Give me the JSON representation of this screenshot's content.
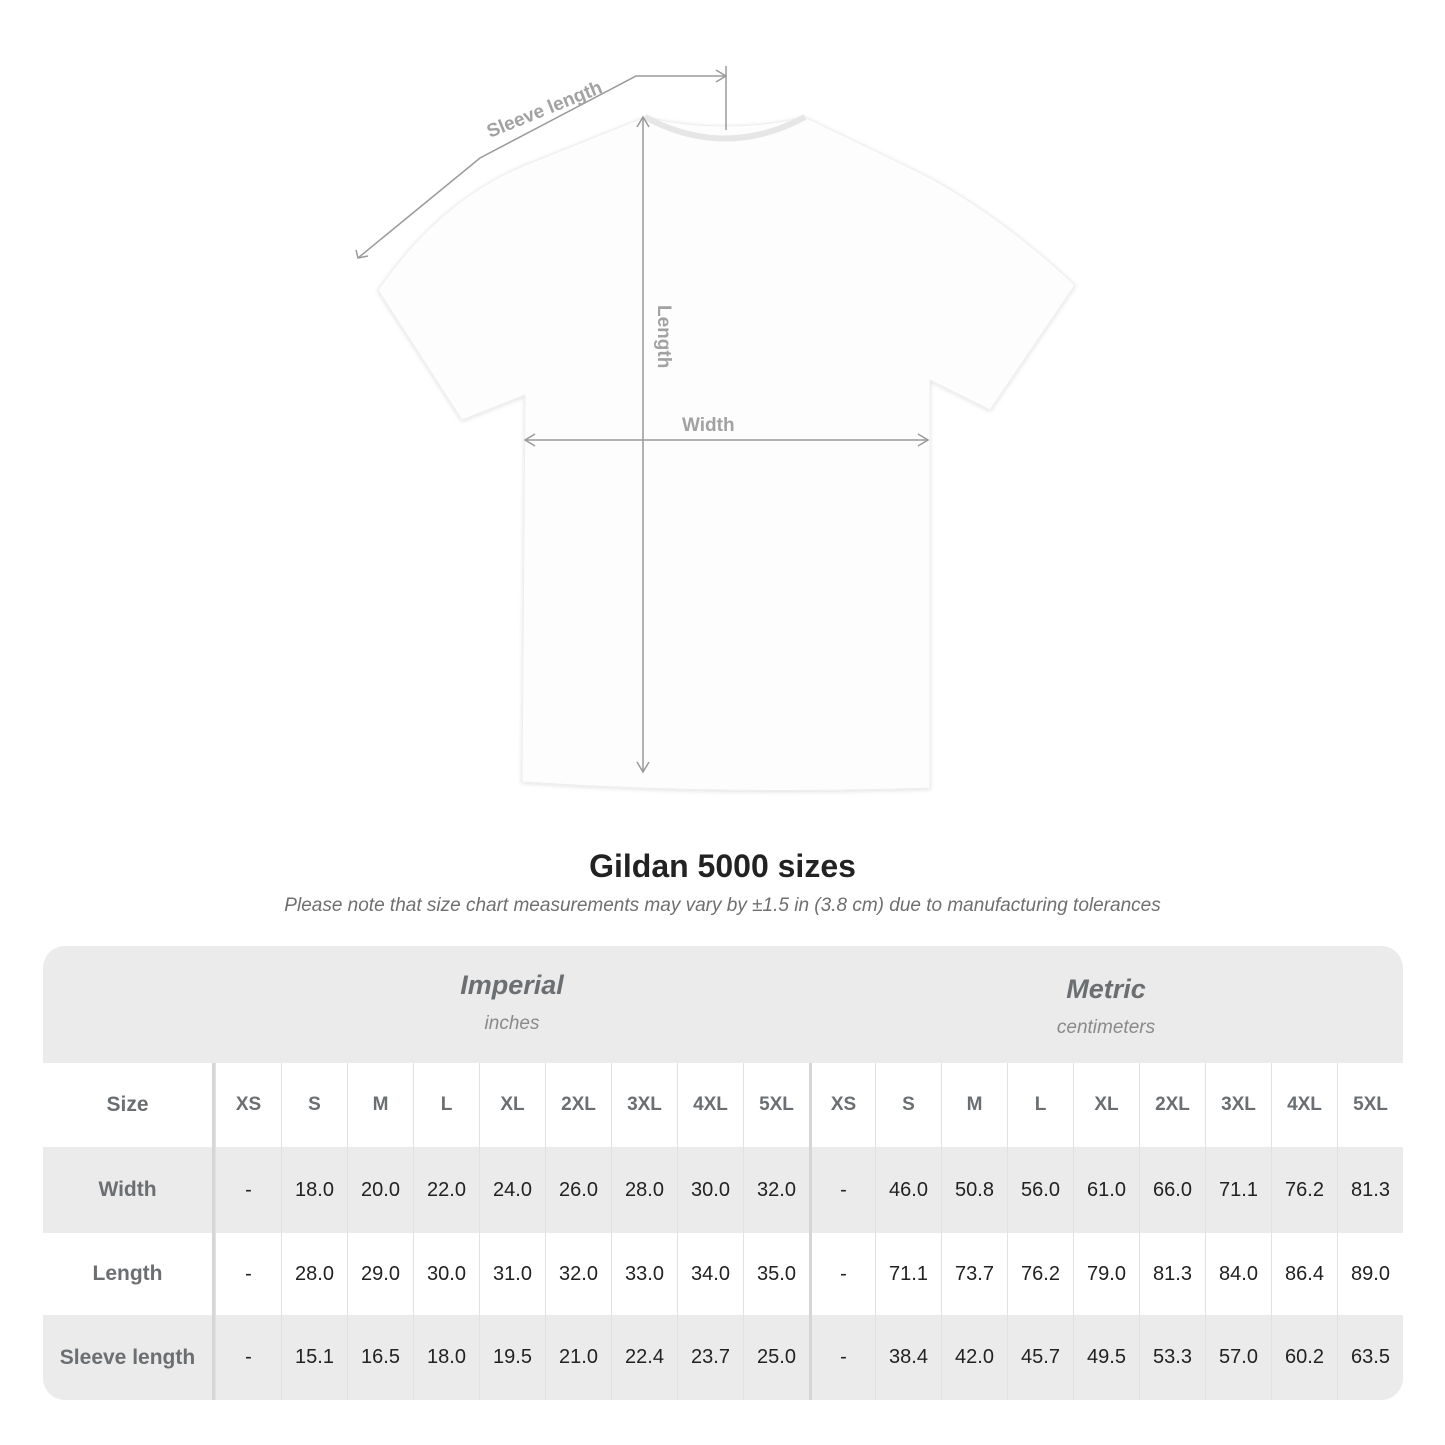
{
  "diagram": {
    "labels": {
      "sleeve": "Sleeve length",
      "length": "Length",
      "width": "Width"
    },
    "line_color": "#9a9a9a"
  },
  "title": "Gildan 5000 sizes",
  "subtitle": "Please note that size chart measurements may vary by ±1.5 in (3.8 cm) due to manufacturing tolerances",
  "systems": [
    {
      "name": "Imperial",
      "unit": "inches"
    },
    {
      "name": "Metric",
      "unit": "centimeters"
    }
  ],
  "table": {
    "size_label": "Size",
    "sizes": [
      "XS",
      "S",
      "M",
      "L",
      "XL",
      "2XL",
      "3XL",
      "4XL",
      "5XL"
    ],
    "rows": [
      {
        "label": "Width",
        "imperial": [
          "-",
          "18.0",
          "20.0",
          "22.0",
          "24.0",
          "26.0",
          "28.0",
          "30.0",
          "32.0"
        ],
        "metric": [
          "-",
          "46.0",
          "50.8",
          "56.0",
          "61.0",
          "66.0",
          "71.1",
          "76.2",
          "81.3"
        ]
      },
      {
        "label": "Length",
        "imperial": [
          "-",
          "28.0",
          "29.0",
          "30.0",
          "31.0",
          "32.0",
          "33.0",
          "34.0",
          "35.0"
        ],
        "metric": [
          "-",
          "71.1",
          "73.7",
          "76.2",
          "79.0",
          "81.3",
          "84.0",
          "86.4",
          "89.0"
        ]
      },
      {
        "label": "Sleeve length",
        "imperial": [
          "-",
          "15.1",
          "16.5",
          "18.0",
          "19.5",
          "21.0",
          "22.4",
          "23.7",
          "25.0"
        ],
        "metric": [
          "-",
          "38.4",
          "42.0",
          "45.7",
          "49.5",
          "53.3",
          "57.0",
          "60.2",
          "63.5"
        ]
      }
    ]
  },
  "colors": {
    "table_gray": "#ebebeb",
    "header_text": "#6b6f72"
  }
}
